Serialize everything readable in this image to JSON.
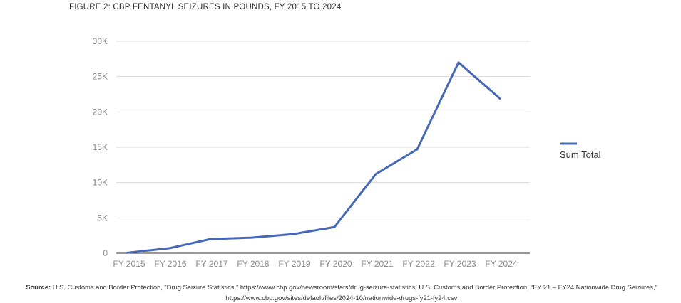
{
  "figure_title": "FIGURE 2: CBP FENTANYL SEIZURES IN POUNDS, FY 2015 TO 2024",
  "source": {
    "label": "Source:",
    "text": "U.S. Customs and Border Protection, “Drug Seizure Statistics,” https://www.cbp.gov/newsroom/stats/drug-seizure-statistics; U.S. Customs and Border Protection, “FY 21 – FY24 Nationwide Drug Seizures,” https://www.cbp.gov/sites/default/files/2024-10/nationwide-drugs-fy21-fy24.csv"
  },
  "colors": {
    "line": "#4467b8",
    "grid": "#d9d9d9",
    "axis": "#333333"
  },
  "chart_data": {
    "type": "line",
    "title": "FIGURE 2: CBP FENTANYL SEIZURES IN POUNDS, FY 2015 TO 2024",
    "xlabel": "",
    "ylabel": "",
    "categories": [
      "FY 2015",
      "FY 2016",
      "FY 2017",
      "FY 2018",
      "FY 2019",
      "FY 2020",
      "FY 2021",
      "FY 2022",
      "FY 2023",
      "FY 2024"
    ],
    "series": [
      {
        "name": "Sum Total",
        "values": [
          70,
          700,
          2000,
          2200,
          2700,
          3700,
          11200,
          14700,
          27000,
          21900
        ]
      }
    ],
    "ylim": [
      0,
      30000
    ],
    "yticks": [
      0,
      5000,
      10000,
      15000,
      20000,
      25000,
      30000
    ],
    "ytick_labels": [
      "0",
      "5K",
      "10K",
      "15K",
      "20K",
      "25K",
      "30K"
    ],
    "grid": true,
    "legend_position": "right"
  }
}
